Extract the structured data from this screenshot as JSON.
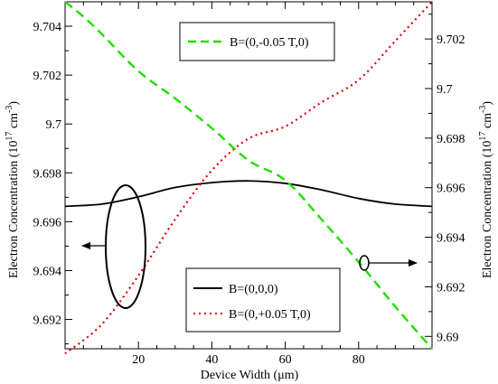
{
  "chart_data": {
    "type": "line",
    "xlabel": "Device Width (μm)",
    "ylabel_left": {
      "main": "Electron Concentration (10",
      "sup1": "17",
      "mid": " cm",
      "sup2": "-3",
      "end": ")"
    },
    "ylabel_right": {
      "main": "Electron Concentration (10",
      "sup1": "17",
      "mid": " cm",
      "sup2": "-3",
      "end": ")"
    },
    "xlim": [
      0,
      100
    ],
    "ylim_left": [
      9.6908,
      9.705
    ],
    "ylim_right": [
      9.6895,
      9.7035
    ],
    "x_ticks": [
      {
        "value": 20,
        "label": "20"
      },
      {
        "value": 40,
        "label": "40"
      },
      {
        "value": 60,
        "label": "60"
      },
      {
        "value": 80,
        "label": "80"
      }
    ],
    "y_ticks_left": [
      {
        "value": 9.692,
        "label": "9.692"
      },
      {
        "value": 9.694,
        "label": "9.694"
      },
      {
        "value": 9.696,
        "label": "9.696"
      },
      {
        "value": 9.698,
        "label": "9.698"
      },
      {
        "value": 9.7,
        "label": "9.7"
      },
      {
        "value": 9.702,
        "label": "9.702"
      },
      {
        "value": 9.704,
        "label": "9.704"
      }
    ],
    "y_ticks_right": [
      {
        "value": 9.69,
        "label": "9.69"
      },
      {
        "value": 9.692,
        "label": "9.692"
      },
      {
        "value": 9.694,
        "label": "9.694"
      },
      {
        "value": 9.696,
        "label": "9.696"
      },
      {
        "value": 9.698,
        "label": "9.698"
      },
      {
        "value": 9.7,
        "label": "9.7"
      },
      {
        "value": 9.702,
        "label": "9.702"
      }
    ],
    "series": [
      {
        "name": "B=(0,0,0)",
        "axis": "left",
        "color": "#000000",
        "style": "solid",
        "x": [
          0,
          10,
          20,
          30,
          40,
          50,
          60,
          70,
          80,
          90,
          100
        ],
        "y": [
          9.69663,
          9.69672,
          9.69702,
          9.6974,
          9.6976,
          9.69767,
          9.69757,
          9.6973,
          9.69695,
          9.69672,
          9.69663
        ]
      },
      {
        "name": "B=(0,+0.05 T,0)",
        "axis": "left",
        "color": "#dd0000",
        "style": "dotted",
        "x": [
          0,
          10,
          20,
          30,
          40,
          50,
          60,
          70,
          80,
          90,
          100
        ],
        "y": [
          9.6906,
          9.6918,
          9.6938,
          9.6961,
          9.6981,
          9.6994,
          9.6999,
          9.7009,
          9.7018,
          9.7034,
          9.705
        ]
      },
      {
        "name": "B=(0,-0.05 T,0)",
        "axis": "right",
        "color": "#22dd00",
        "style": "dashed",
        "x": [
          0,
          5,
          10,
          20,
          30,
          40,
          50,
          60,
          70,
          80,
          90,
          100
        ],
        "y": [
          9.7035,
          9.7029,
          9.7022,
          9.7007,
          9.6996,
          9.6984,
          9.6971,
          9.6963,
          9.6947,
          9.693,
          9.6912,
          9.6895
        ]
      }
    ],
    "legends": [
      {
        "position": "top",
        "entries": [
          "B=(0,-0.05 T,0)"
        ]
      },
      {
        "position": "bottom",
        "entries": [
          "B=(0,0,0)",
          "B=(0,+0.05 T,0)"
        ]
      }
    ],
    "annotations": [
      {
        "type": "ellipse-arrow",
        "points_to": "left axis",
        "encircles": "B=(0,0,0) and B=(0,+0.05 T,0) near x=17"
      },
      {
        "type": "ellipse-arrow",
        "points_to": "right axis",
        "encircles": "B=(0,-0.05 T,0) near x=81"
      }
    ],
    "grid": false
  }
}
